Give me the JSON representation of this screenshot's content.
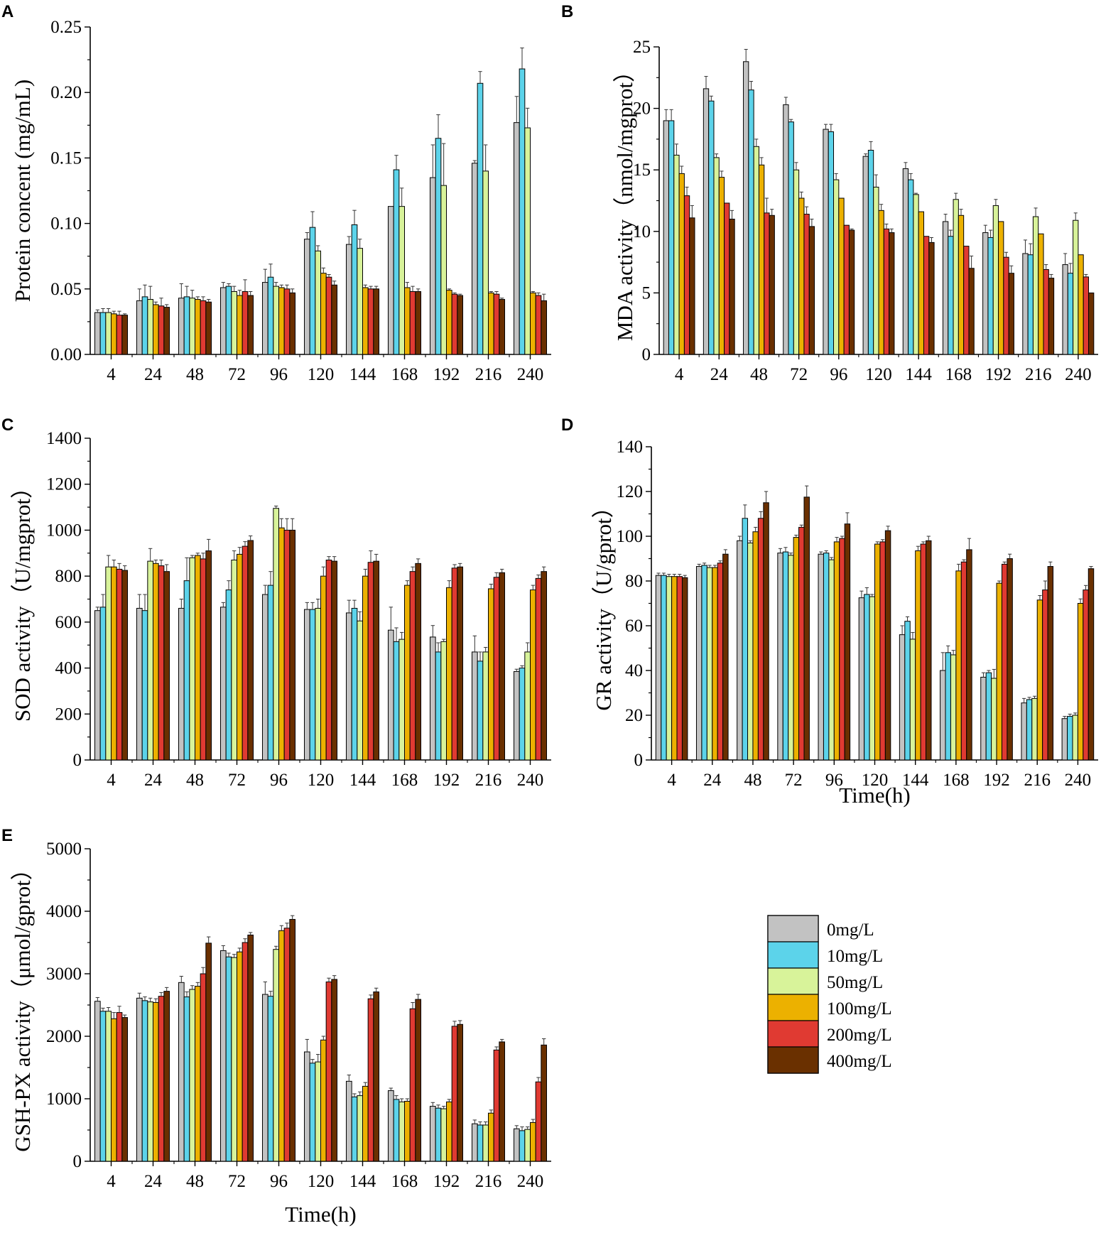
{
  "colors": {
    "0mg/L": "#c2c2c2",
    "10mg/L": "#5cd3ea",
    "50mg/L": "#d8f39a",
    "100mg/L": "#ecb100",
    "200mg/L": "#e03a32",
    "400mg/L": "#6a3000"
  },
  "legend": [
    "0mg/L",
    "10mg/L",
    "50mg/L",
    "100mg/L",
    "200mg/L",
    "400mg/L"
  ],
  "chart_data": [
    {
      "panel": "A",
      "type": "bar",
      "title": "",
      "xlabel": "",
      "ylabel": "Protein concent (mg/mL)",
      "categories": [
        "4",
        "24",
        "48",
        "72",
        "96",
        "120",
        "144",
        "168",
        "192",
        "216",
        "240"
      ],
      "ylim": [
        0,
        0.25
      ],
      "yticks": [
        "0.00",
        "0.05",
        "0.10",
        "0.15",
        "0.20",
        "0.25"
      ],
      "series": [
        {
          "name": "0mg/L",
          "values": [
            0.032,
            0.041,
            0.043,
            0.051,
            0.055,
            0.088,
            0.084,
            0.113,
            0.135,
            0.146,
            0.177
          ]
        },
        {
          "name": "10mg/L",
          "values": [
            0.032,
            0.044,
            0.044,
            0.052,
            0.059,
            0.097,
            0.099,
            0.141,
            0.165,
            0.207,
            0.218
          ]
        },
        {
          "name": "50mg/L",
          "values": [
            0.032,
            0.042,
            0.043,
            0.048,
            0.052,
            0.079,
            0.081,
            0.113,
            0.129,
            0.14,
            0.173
          ]
        },
        {
          "name": "100mg/L",
          "values": [
            0.031,
            0.038,
            0.042,
            0.045,
            0.051,
            0.062,
            0.051,
            0.051,
            0.049,
            0.047,
            0.047
          ]
        },
        {
          "name": "200mg/L",
          "values": [
            0.03,
            0.037,
            0.041,
            0.048,
            0.05,
            0.059,
            0.05,
            0.048,
            0.046,
            0.046,
            0.045
          ]
        },
        {
          "name": "400mg/L",
          "values": [
            0.03,
            0.036,
            0.04,
            0.045,
            0.047,
            0.053,
            0.05,
            0.048,
            0.045,
            0.042,
            0.041
          ]
        }
      ],
      "errors": [
        [
          0.002,
          0.009,
          0.011,
          0.004,
          0.01,
          0.005,
          0.006,
          0.0,
          0.025,
          0.002,
          0.02
        ],
        [
          0.003,
          0.009,
          0.008,
          0.002,
          0.01,
          0.012,
          0.011,
          0.011,
          0.018,
          0.009,
          0.016
        ],
        [
          0.003,
          0.01,
          0.006,
          0.004,
          0.003,
          0.004,
          0.007,
          0.014,
          0.032,
          0.02,
          0.015
        ],
        [
          0.002,
          0.002,
          0.002,
          0.004,
          0.002,
          0.004,
          0.002,
          0.004,
          0.001,
          0.001,
          0.001
        ],
        [
          0.003,
          0.006,
          0.003,
          0.009,
          0.003,
          0.002,
          0.002,
          0.004,
          0.001,
          0.002,
          0.002
        ],
        [
          0.001,
          0.002,
          0.002,
          0.003,
          0.003,
          0.003,
          0.002,
          0.002,
          0.001,
          0.001,
          0.005
        ]
      ]
    },
    {
      "panel": "B",
      "type": "bar",
      "title": "",
      "xlabel": "",
      "ylabel": "MDA activity（nmol/mgprot）",
      "categories": [
        "4",
        "24",
        "48",
        "72",
        "96",
        "120",
        "144",
        "168",
        "192",
        "216",
        "240"
      ],
      "ylim": [
        0,
        25
      ],
      "yticks": [
        "0",
        "5",
        "10",
        "15",
        "20",
        "25"
      ],
      "series": [
        {
          "name": "0mg/L",
          "values": [
            19.0,
            21.6,
            23.8,
            20.3,
            18.3,
            16.1,
            15.1,
            10.8,
            9.9,
            8.2,
            7.3
          ]
        },
        {
          "name": "10mg/L",
          "values": [
            19.0,
            20.6,
            21.5,
            18.9,
            18.1,
            16.6,
            14.2,
            9.6,
            9.5,
            8.1,
            6.6
          ]
        },
        {
          "name": "50mg/L",
          "values": [
            16.2,
            16.0,
            16.9,
            15.0,
            14.2,
            13.6,
            13.0,
            12.6,
            12.1,
            11.2,
            10.9
          ]
        },
        {
          "name": "100mg/L",
          "values": [
            14.7,
            14.4,
            15.4,
            12.7,
            12.7,
            11.7,
            11.6,
            11.3,
            10.8,
            9.8,
            8.1
          ]
        },
        {
          "name": "200mg/L",
          "values": [
            12.9,
            12.3,
            11.5,
            11.4,
            10.5,
            10.2,
            9.6,
            8.8,
            7.9,
            6.9,
            6.3
          ]
        },
        {
          "name": "400mg/L",
          "values": [
            11.1,
            11.0,
            11.3,
            10.4,
            10.1,
            9.9,
            9.1,
            7.0,
            6.6,
            6.2,
            5.0
          ]
        }
      ],
      "errors": [
        [
          0.9,
          1.0,
          1.0,
          0.6,
          0.4,
          0.2,
          0.5,
          0.6,
          0.6,
          1.1,
          0.9
        ],
        [
          0.9,
          0.4,
          0.7,
          0.2,
          0.6,
          0.7,
          0.5,
          0.5,
          0.6,
          0.9,
          0.8
        ],
        [
          0.9,
          0.3,
          0.6,
          0.6,
          0.5,
          1.0,
          0.1,
          0.5,
          0.5,
          0.7,
          0.6
        ],
        [
          0.6,
          0.5,
          0.6,
          0.5,
          0.0,
          0.5,
          0.0,
          0.5,
          0.0,
          0.0,
          0.0
        ],
        [
          0.7,
          0.0,
          1.2,
          0.6,
          0.0,
          0.4,
          0.0,
          0.0,
          0.4,
          0.4,
          0.2
        ],
        [
          1.0,
          0.7,
          0.5,
          0.6,
          0.1,
          0.3,
          0.4,
          1.0,
          0.6,
          0.3,
          0.0
        ]
      ]
    },
    {
      "panel": "C",
      "type": "bar",
      "title": "",
      "xlabel": "",
      "ylabel": "SOD activity（U/mgprot）",
      "categories": [
        "4",
        "24",
        "48",
        "72",
        "96",
        "120",
        "144",
        "168",
        "192",
        "216",
        "240"
      ],
      "ylim": [
        0,
        1400
      ],
      "yticks": [
        "0",
        "200",
        "400",
        "600",
        "800",
        "1000",
        "1200",
        "1400"
      ],
      "series": [
        {
          "name": "0mg/L",
          "values": [
            650,
            660,
            660,
            665,
            720,
            655,
            640,
            565,
            535,
            470,
            385
          ]
        },
        {
          "name": "10mg/L",
          "values": [
            665,
            650,
            780,
            740,
            760,
            655,
            660,
            515,
            470,
            430,
            400
          ]
        },
        {
          "name": "50mg/L",
          "values": [
            840,
            865,
            880,
            870,
            1095,
            660,
            605,
            525,
            515,
            470,
            470
          ]
        },
        {
          "name": "100mg/L",
          "values": [
            840,
            855,
            890,
            895,
            1010,
            800,
            800,
            760,
            750,
            745,
            740
          ]
        },
        {
          "name": "200mg/L",
          "values": [
            830,
            845,
            875,
            930,
            1000,
            870,
            860,
            820,
            835,
            795,
            790
          ]
        },
        {
          "name": "400mg/L",
          "values": [
            825,
            820,
            910,
            955,
            1000,
            865,
            865,
            855,
            840,
            815,
            820
          ]
        }
      ],
      "errors": [
        [
          15,
          60,
          40,
          20,
          40,
          30,
          55,
          100,
          50,
          70,
          10
        ],
        [
          55,
          70,
          100,
          40,
          60,
          30,
          35,
          60,
          40,
          40,
          10
        ],
        [
          50,
          55,
          10,
          40,
          10,
          40,
          40,
          30,
          10,
          20,
          40
        ],
        [
          30,
          15,
          10,
          30,
          40,
          40,
          30,
          20,
          30,
          20,
          20
        ],
        [
          25,
          25,
          25,
          20,
          50,
          15,
          50,
          20,
          15,
          20,
          15
        ],
        [
          20,
          30,
          50,
          20,
          50,
          20,
          30,
          20,
          15,
          15,
          20
        ]
      ]
    },
    {
      "panel": "D",
      "type": "bar",
      "title": "",
      "xlabel": "Time(h)",
      "ylabel": "GR activity（U/gprot）",
      "categories": [
        "4",
        "24",
        "48",
        "72",
        "96",
        "120",
        "144",
        "168",
        "192",
        "216",
        "240"
      ],
      "ylim": [
        0,
        140
      ],
      "yticks": [
        "0",
        "20",
        "40",
        "60",
        "80",
        "100",
        "120",
        "140"
      ],
      "series": [
        {
          "name": "0mg/L",
          "values": [
            82.5,
            86.5,
            98,
            92.5,
            92,
            72.5,
            56,
            40,
            37,
            25.5,
            18.5
          ]
        },
        {
          "name": "10mg/L",
          "values": [
            82.5,
            87,
            108,
            93,
            92.5,
            74,
            62,
            48,
            39,
            27,
            19.5
          ]
        },
        {
          "name": "50mg/L",
          "values": [
            82,
            86,
            97,
            91.5,
            89.5,
            73,
            54,
            47,
            36.5,
            27.5,
            20
          ]
        },
        {
          "name": "100mg/L",
          "values": [
            82,
            86,
            102,
            99.5,
            97.5,
            96.5,
            93.5,
            84.5,
            79,
            71.5,
            70
          ]
        },
        {
          "name": "200mg/L",
          "values": [
            82,
            88,
            108,
            104,
            99,
            97.5,
            96.5,
            88.5,
            87.5,
            76,
            76
          ]
        },
        {
          "name": "400mg/L",
          "values": [
            81.5,
            92,
            115,
            117.5,
            105.5,
            102.5,
            98,
            94,
            90,
            86.5,
            85.5
          ]
        }
      ],
      "errors": [
        [
          1,
          1,
          2,
          2,
          1,
          3,
          4,
          8,
          2,
          2,
          1
        ],
        [
          1,
          1,
          6,
          2,
          1,
          3,
          2,
          3,
          1,
          1,
          1
        ],
        [
          1,
          1,
          1,
          1,
          1,
          1,
          3,
          2,
          4,
          1,
          1
        ],
        [
          1,
          1,
          2,
          1,
          2,
          1,
          2,
          3,
          1,
          2,
          2
        ],
        [
          1,
          1,
          3,
          1,
          1,
          1,
          1,
          1,
          1,
          4,
          2
        ],
        [
          1,
          2,
          5,
          5,
          5,
          2,
          2,
          5,
          2,
          2,
          1
        ]
      ]
    },
    {
      "panel": "E",
      "type": "bar",
      "title": "",
      "xlabel": "Time(h)",
      "ylabel": "GSH-PX activity（μmol/gprot）",
      "categories": [
        "4",
        "24",
        "48",
        "72",
        "96",
        "120",
        "144",
        "168",
        "192",
        "216",
        "240"
      ],
      "ylim": [
        0,
        5000
      ],
      "yticks": [
        "0",
        "1000",
        "2000",
        "3000",
        "4000",
        "5000"
      ],
      "series": [
        {
          "name": "0mg/L",
          "values": [
            2560,
            2610,
            2860,
            3370,
            2670,
            1750,
            1280,
            1130,
            880,
            600,
            520
          ]
        },
        {
          "name": "10mg/L",
          "values": [
            2400,
            2570,
            2630,
            3270,
            2640,
            1570,
            1030,
            990,
            850,
            580,
            490
          ]
        },
        {
          "name": "50mg/L",
          "values": [
            2400,
            2550,
            2750,
            3260,
            3390,
            1590,
            1050,
            950,
            840,
            580,
            510
          ]
        },
        {
          "name": "100mg/L",
          "values": [
            2280,
            2540,
            2800,
            3350,
            3690,
            1940,
            1200,
            960,
            950,
            770,
            620
          ]
        },
        {
          "name": "200mg/L",
          "values": [
            2380,
            2640,
            3000,
            3500,
            3730,
            2870,
            2600,
            2440,
            2160,
            1780,
            1270
          ]
        },
        {
          "name": "400mg/L",
          "values": [
            2300,
            2720,
            3490,
            3620,
            3870,
            2910,
            2710,
            2590,
            2190,
            1910,
            1860
          ]
        }
      ],
      "errors": [
        [
          60,
          80,
          100,
          80,
          200,
          200,
          100,
          40,
          60,
          60,
          50
        ],
        [
          50,
          60,
          80,
          60,
          80,
          60,
          50,
          60,
          50,
          50,
          60
        ],
        [
          60,
          60,
          60,
          50,
          50,
          120,
          60,
          50,
          40,
          50,
          40
        ],
        [
          100,
          60,
          60,
          60,
          80,
          60,
          60,
          40,
          40,
          50,
          50
        ],
        [
          100,
          60,
          100,
          60,
          80,
          60,
          60,
          100,
          80,
          50,
          70
        ],
        [
          40,
          60,
          100,
          40,
          60,
          60,
          60,
          80,
          60,
          40,
          100
        ]
      ]
    }
  ]
}
